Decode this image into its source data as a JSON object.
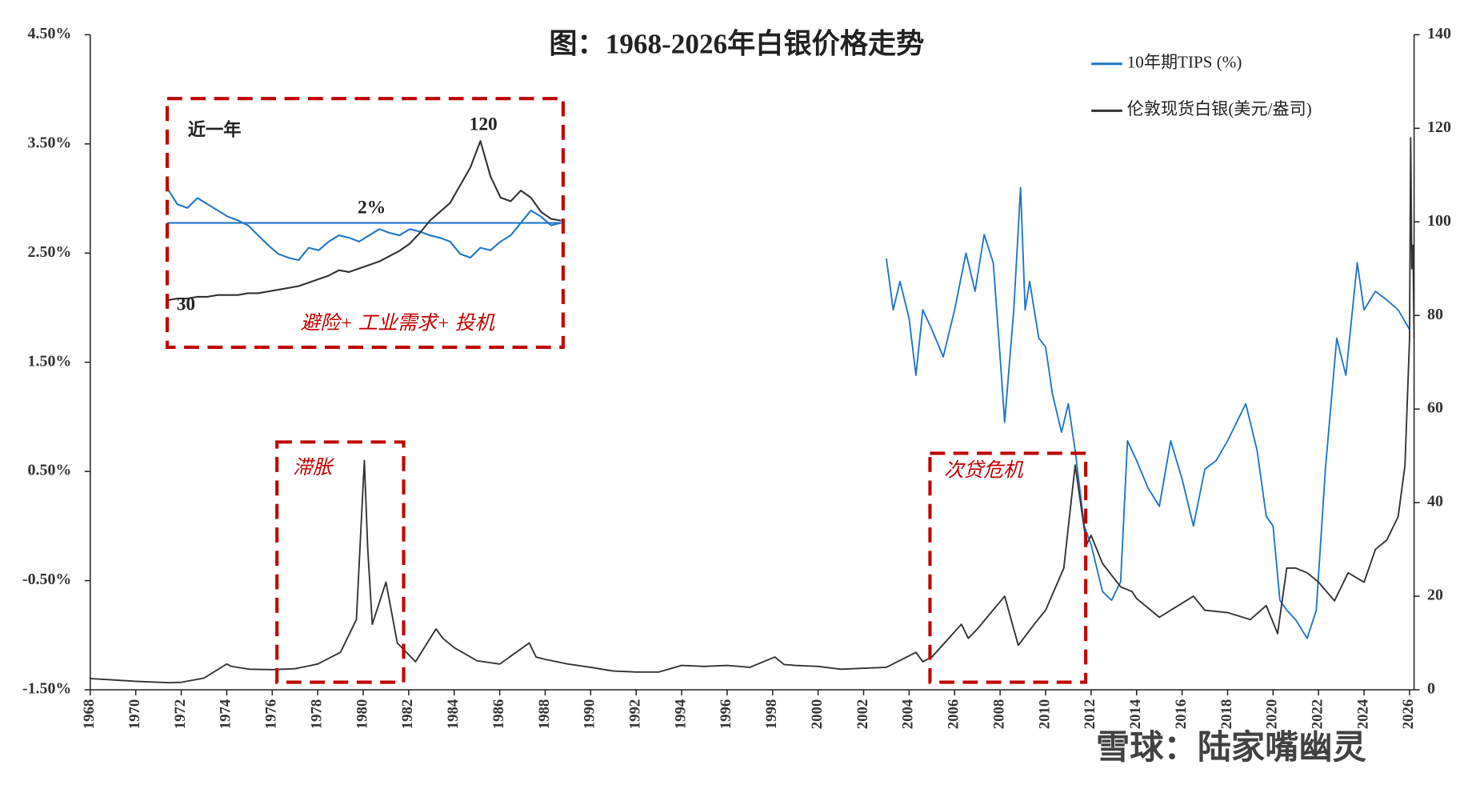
{
  "chart_data": [
    {
      "type": "line",
      "title": "图：1968-2026年白银价格走势",
      "xlim": [
        1968,
        2026.2
      ],
      "xticks": [
        1968,
        1970,
        1972,
        1974,
        1976,
        1978,
        1980,
        1982,
        1984,
        1986,
        1988,
        1990,
        1992,
        1994,
        1996,
        1998,
        2000,
        2002,
        2004,
        2006,
        2008,
        2010,
        2012,
        2014,
        2016,
        2018,
        2020,
        2022,
        2024,
        2026
      ],
      "ylim": [
        -1.5,
        4.5
      ],
      "yticks": [
        {
          "value": -1.5,
          "label": "-1.50%"
        },
        {
          "value": -0.5,
          "label": "-0.50%"
        },
        {
          "value": 0.5,
          "label": "0.50%"
        },
        {
          "value": 1.5,
          "label": "1.50%"
        },
        {
          "value": 2.5,
          "label": "2.50%"
        },
        {
          "value": 3.5,
          "label": "3.50%"
        },
        {
          "value": 4.5,
          "label": "4.50%"
        }
      ],
      "y2lim": [
        0,
        140
      ],
      "y2ticks": [
        0,
        20,
        40,
        60,
        80,
        100,
        120,
        140
      ],
      "legend": "upper right",
      "annotations": [
        "滞胀",
        "次贷危机"
      ],
      "series": [
        {
          "name": "10年期TIPS (%)",
          "color": "#1f77c4",
          "axis": "y",
          "x": [
            2003,
            2003.3,
            2003.6,
            2004,
            2004.3,
            2004.6,
            2005,
            2005.5,
            2006,
            2006.5,
            2006.9,
            2007.3,
            2007.7,
            2008,
            2008.2,
            2008.6,
            2008.9,
            2009.1,
            2009.3,
            2009.7,
            2010,
            2010.3,
            2010.7,
            2011,
            2011.3,
            2011.7,
            2012,
            2012.5,
            2012.9,
            2013.3,
            2013.6,
            2014,
            2014.5,
            2015,
            2015.5,
            2016,
            2016.5,
            2017,
            2017.5,
            2018,
            2018.8,
            2019.3,
            2019.7,
            2020,
            2020.3,
            2020.6,
            2021,
            2021.5,
            2021.9,
            2022.3,
            2022.8,
            2023.2,
            2023.7,
            2024,
            2024.5,
            2025,
            2025.5,
            2026
          ],
          "values": [
            2.45,
            1.98,
            2.24,
            1.9,
            1.38,
            1.98,
            1.8,
            1.55,
            1.98,
            2.5,
            2.15,
            2.67,
            2.41,
            1.55,
            0.95,
            1.98,
            3.1,
            1.98,
            2.24,
            1.72,
            1.64,
            1.21,
            0.86,
            1.12,
            0.69,
            0.0,
            -0.17,
            -0.6,
            -0.68,
            -0.51,
            0.78,
            0.6,
            0.35,
            0.18,
            0.78,
            0.43,
            0.0,
            0.52,
            0.6,
            0.78,
            1.12,
            0.69,
            0.09,
            0.0,
            -0.68,
            -0.77,
            -0.86,
            -1.03,
            -0.77,
            0.52,
            1.72,
            1.38,
            2.41,
            1.98,
            2.15,
            2.07,
            1.98,
            1.8
          ]
        },
        {
          "name": "伦敦现货白银(美元/盎司)",
          "color": "#333333",
          "axis": "y2",
          "x": [
            1968,
            1970,
            1971.5,
            1972,
            1973,
            1974,
            1974.2,
            1975,
            1976,
            1977,
            1978,
            1979,
            1979.7,
            1980.05,
            1980.2,
            1980.4,
            1980.8,
            1981,
            1981.5,
            1982.3,
            1983.2,
            1983.5,
            1984,
            1985,
            1986,
            1987.3,
            1987.6,
            1988,
            1989,
            1990,
            1991,
            1992,
            1993,
            1994,
            1995,
            1996,
            1997,
            1998.1,
            1998.5,
            1999,
            2000,
            2001,
            2002,
            2003,
            2004.3,
            2004.6,
            2005,
            2006.3,
            2006.6,
            2007,
            2008.2,
            2008.8,
            2009.5,
            2010,
            2010.8,
            2011.3,
            2011.8,
            2012,
            2012.5,
            2013.3,
            2013.8,
            2014,
            2015,
            2016.5,
            2017,
            2018,
            2019,
            2019.7,
            2020.2,
            2020.6,
            2021,
            2021.5,
            2022,
            2022.7,
            2023.3,
            2024,
            2024.5,
            2025,
            2025.5,
            2025.8,
            2026,
            2026.05,
            2026.1,
            2026.15,
            2026.2
          ],
          "values": [
            2.4,
            1.8,
            1.5,
            1.6,
            2.5,
            5.5,
            5,
            4.4,
            4.3,
            4.5,
            5.5,
            8,
            15,
            49,
            30,
            14,
            20,
            23,
            10,
            6,
            13,
            11,
            9,
            6.2,
            5.5,
            10,
            7,
            6.5,
            5.5,
            4.8,
            4,
            3.8,
            3.8,
            5.2,
            5,
            5.2,
            4.8,
            7,
            5.4,
            5.2,
            5,
            4.4,
            4.6,
            4.8,
            8,
            6,
            7,
            14,
            11,
            13,
            20,
            9.5,
            14,
            17,
            26,
            48,
            31,
            33,
            27,
            22,
            21,
            19.5,
            15.5,
            20,
            17,
            16.5,
            15,
            18,
            12,
            26,
            26,
            25,
            23,
            19,
            25,
            23,
            30,
            32,
            37,
            48,
            75,
            118,
            90,
            95,
            75
          ]
        }
      ]
    },
    {
      "type": "line",
      "label": "近一年",
      "note": "避险+ 工业需求+ 投机",
      "annotations": [
        "120",
        "30"
      ],
      "categories": [
        null,
        null,
        null,
        null,
        null,
        null,
        null,
        null,
        null,
        null,
        null,
        null,
        null,
        null,
        null,
        null,
        null,
        null,
        null,
        null,
        null,
        null,
        null,
        null,
        null,
        null,
        null,
        null,
        null,
        null,
        null,
        null,
        null,
        null,
        null,
        null,
        null,
        null,
        null,
        null
      ],
      "ylim": [
        1,
        3
      ],
      "y2lim": [
        3.5,
        144
      ],
      "reference_line": {
        "value": 2,
        "label": "2%"
      },
      "series": [
        {
          "color": "#1f77c4",
          "axis": "y",
          "values": [
            2.28,
            2.15,
            2.12,
            2.2,
            2.15,
            2.1,
            2.05,
            2.02,
            1.98,
            1.9,
            1.82,
            1.75,
            1.72,
            1.7,
            1.8,
            1.78,
            1.85,
            1.9,
            1.88,
            1.85,
            1.9,
            1.95,
            1.92,
            1.9,
            1.95,
            1.93,
            1.9,
            1.88,
            1.85,
            1.75,
            1.72,
            1.8,
            1.78,
            1.85,
            1.9,
            2.0,
            2.1,
            2.05,
            1.98,
            2.0
          ]
        },
        {
          "color": "#333333",
          "axis": "y2",
          "values": [
            30,
            31,
            31,
            32,
            32,
            33,
            33,
            33,
            34,
            34,
            35,
            36,
            37,
            38,
            40,
            42,
            44,
            47,
            46,
            48,
            50,
            52,
            55,
            58,
            62,
            68,
            75,
            80,
            85,
            95,
            105,
            120,
            100,
            88,
            86,
            92,
            88,
            80,
            76,
            75
          ]
        }
      ]
    }
  ],
  "watermark": "雪球：陆家嘴幽灵"
}
